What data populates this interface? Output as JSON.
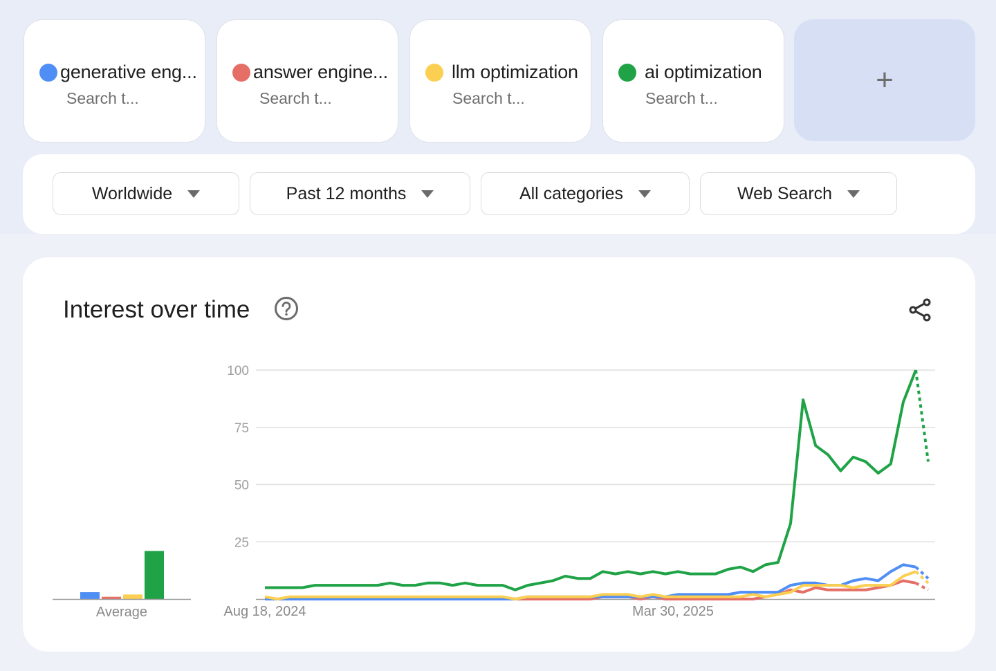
{
  "terms": [
    {
      "name": "generative eng...",
      "subtitle": "Search t...",
      "color": "#4f8ef5"
    },
    {
      "name": "answer engine...",
      "subtitle": "Search t...",
      "color": "#e56f66"
    },
    {
      "name": "llm optimization",
      "subtitle": "Search t...",
      "color": "#fbcf51"
    },
    {
      "name": "ai optimization",
      "subtitle": "Search t...",
      "color": "#1fa346"
    }
  ],
  "add_term": {
    "label": "+"
  },
  "filters": {
    "region": "Worldwide",
    "time_range": "Past 12 months",
    "category": "All categories",
    "search_type": "Web Search"
  },
  "chart_card": {
    "title": "Interest over time",
    "help_icon": "help-circle-icon",
    "share_icon": "share-icon"
  },
  "chart_data": [
    {
      "type": "bar",
      "title": "Average",
      "categories": [
        "generative eng...",
        "answer engine...",
        "llm optimization",
        "ai optimization"
      ],
      "values": [
        3,
        1,
        2,
        21
      ],
      "colors": [
        "#4f8ef5",
        "#e56f66",
        "#fbcf51",
        "#1fa346"
      ],
      "xlabel": "Average",
      "ylim": [
        0,
        100
      ]
    },
    {
      "type": "line",
      "title": "Interest over time",
      "x_tick_labels": [
        "Aug 18, 2024",
        "Mar 30, 2025"
      ],
      "y_ticks": [
        25,
        50,
        75,
        100
      ],
      "ylim": [
        0,
        100
      ],
      "grid": true,
      "x_points": 53,
      "series": [
        {
          "name": "ai optimization",
          "color": "#1fa346",
          "values": [
            5,
            5,
            5,
            5,
            6,
            6,
            6,
            6,
            6,
            6,
            7,
            6,
            6,
            7,
            7,
            6,
            7,
            6,
            6,
            6,
            4,
            6,
            7,
            8,
            10,
            9,
            9,
            12,
            11,
            12,
            11,
            12,
            11,
            12,
            11,
            11,
            11,
            13,
            14,
            12,
            15,
            16,
            33,
            87,
            67,
            63,
            56,
            62,
            60,
            55,
            59,
            86,
            100
          ],
          "partial_last": 60
        },
        {
          "name": "generative eng...",
          "color": "#4f8ef5",
          "values": [
            0,
            0,
            0,
            0,
            0,
            0,
            0,
            0,
            0,
            0,
            0,
            0,
            0,
            0,
            0,
            0,
            0,
            0,
            0,
            0,
            0,
            1,
            1,
            1,
            1,
            1,
            1,
            1,
            1,
            1,
            1,
            1,
            1,
            2,
            2,
            2,
            2,
            2,
            3,
            3,
            3,
            3,
            6,
            7,
            7,
            6,
            6,
            8,
            9,
            8,
            12,
            15,
            14
          ],
          "partial_last": 9
        },
        {
          "name": "answer engine...",
          "color": "#e56f66",
          "values": [
            0,
            0,
            0,
            0,
            0,
            0,
            0,
            0,
            0,
            0,
            0,
            0,
            0,
            0,
            0,
            0,
            0,
            0,
            0,
            0,
            0,
            0,
            0,
            0,
            0,
            0,
            0,
            1,
            1,
            1,
            0,
            1,
            0,
            0,
            0,
            0,
            0,
            0,
            0,
            0,
            1,
            2,
            4,
            3,
            5,
            4,
            4,
            4,
            4,
            5,
            6,
            8,
            7
          ],
          "partial_last": 4
        },
        {
          "name": "llm optimization",
          "color": "#fbcf51",
          "values": [
            1,
            0,
            1,
            1,
            1,
            1,
            1,
            1,
            1,
            1,
            1,
            1,
            1,
            1,
            1,
            1,
            1,
            1,
            1,
            1,
            0,
            1,
            1,
            1,
            1,
            1,
            1,
            2,
            2,
            2,
            1,
            2,
            1,
            1,
            1,
            1,
            1,
            1,
            1,
            2,
            1,
            2,
            3,
            6,
            6,
            6,
            6,
            5,
            6,
            6,
            6,
            10,
            12
          ],
          "partial_last": 7
        }
      ]
    }
  ]
}
